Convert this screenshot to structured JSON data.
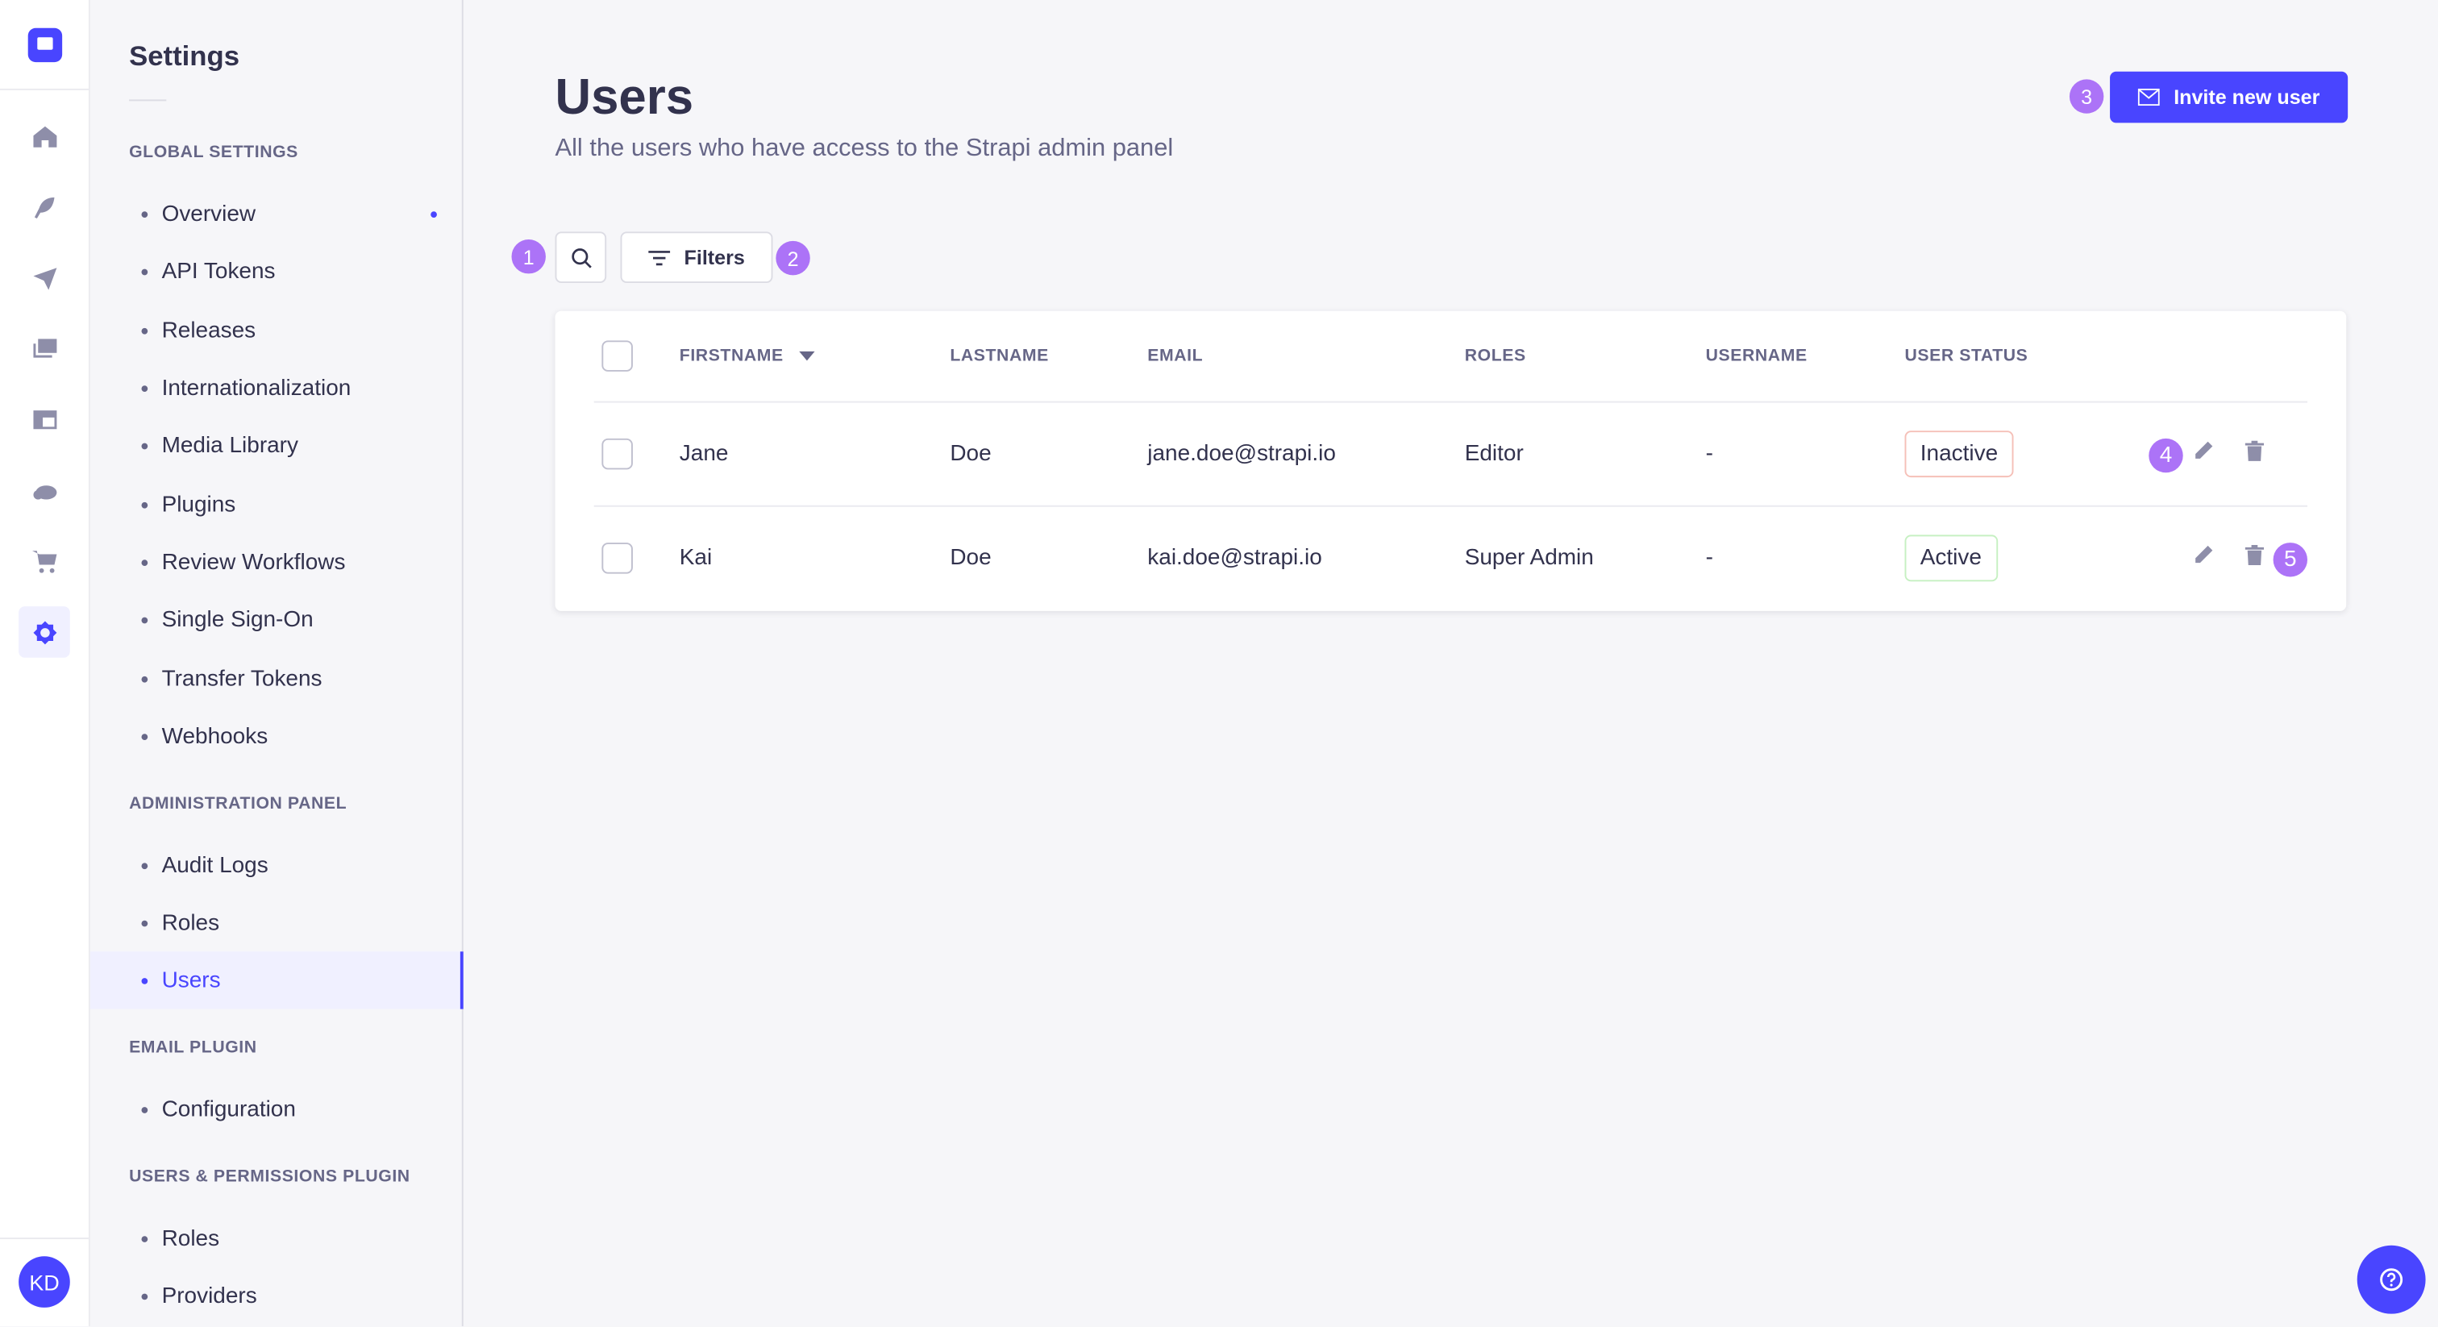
{
  "app": {
    "avatar_initials": "KD",
    "accent": "#4945ff",
    "badge_color": "#ac73f7"
  },
  "rail": {
    "icons": [
      "logo-icon",
      "home-icon",
      "feather-icon",
      "paper-plane-icon",
      "images-icon",
      "layout-icon",
      "cloud-icon",
      "cart-icon",
      "gear-icon"
    ]
  },
  "sidebar": {
    "title": "Settings",
    "sections": [
      {
        "label": "Global Settings",
        "items": [
          "Overview",
          "API Tokens",
          "Releases",
          "Internationalization",
          "Media Library",
          "Plugins",
          "Review Workflows",
          "Single Sign-On",
          "Transfer Tokens",
          "Webhooks"
        ]
      },
      {
        "label": "Administration Panel",
        "items": [
          "Audit Logs",
          "Roles",
          "Users"
        ]
      },
      {
        "label": "Email Plugin",
        "items": [
          "Configuration"
        ]
      },
      {
        "label": "Users & Permissions Plugin",
        "items": [
          "Roles",
          "Providers"
        ]
      }
    ],
    "active_item": "Users"
  },
  "header": {
    "title": "Users",
    "subtitle": "All the users who have access to the Strapi admin panel",
    "invite_label": "Invite new user"
  },
  "toolbar": {
    "filters_label": "Filters"
  },
  "badges": [
    "1",
    "2",
    "3",
    "4",
    "5"
  ],
  "table": {
    "columns": [
      "Firstname",
      "Lastname",
      "Email",
      "Roles",
      "Username",
      "User status"
    ],
    "sort_column": "Firstname",
    "rows": [
      {
        "firstname": "Jane",
        "lastname": "Doe",
        "email": "jane.doe@strapi.io",
        "roles": "Editor",
        "username": "-",
        "status": "Inactive"
      },
      {
        "firstname": "Kai",
        "lastname": "Doe",
        "email": "kai.doe@strapi.io",
        "roles": "Super Admin",
        "username": "-",
        "status": "Active"
      }
    ]
  }
}
